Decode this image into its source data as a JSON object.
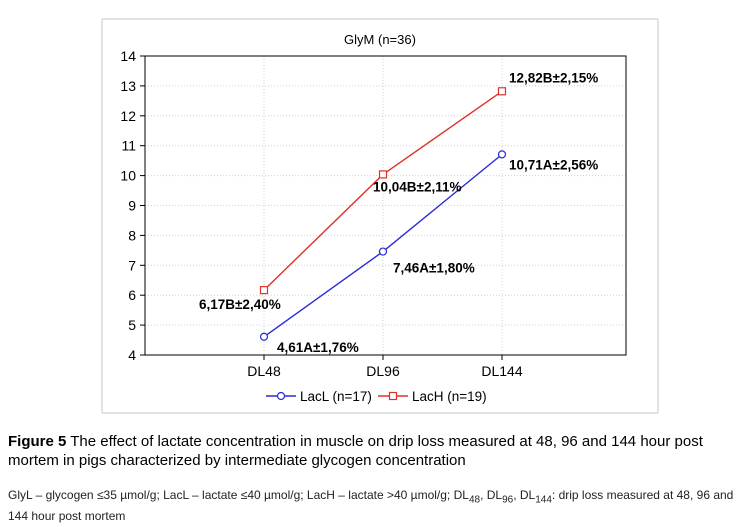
{
  "chart_data": {
    "type": "line",
    "title": "GlyM (n=36)",
    "categories": [
      "DL48",
      "DL96",
      "DL144"
    ],
    "ylim": [
      4,
      14
    ],
    "yticks": [
      4,
      5,
      6,
      7,
      8,
      9,
      10,
      11,
      12,
      13,
      14
    ],
    "grid": true,
    "legend_position": "bottom",
    "series": [
      {
        "name": "LacL (n=17)",
        "marker": "circle",
        "color": "#2a2ad8",
        "values": [
          4.61,
          7.46,
          10.71
        ],
        "labels": [
          "4,61A±1,76%",
          "7,46A±1,80%",
          "10,71A±2,56%"
        ]
      },
      {
        "name": "LacH (n=19)",
        "marker": "square",
        "color": "#e0302a",
        "values": [
          6.17,
          10.04,
          12.82
        ],
        "labels": [
          "6,17B±2,40%",
          "10,04B±2,11%",
          "12,82B±2,15%"
        ]
      }
    ]
  },
  "caption": {
    "label": "Figure 5",
    "text": " The effect of lactate concentration in muscle on drip loss measured at 48, 96 and 144 hour post mortem in pigs characterized by intermediate glycogen concentration"
  },
  "note": {
    "part1": "GlyL – glycogen ≤35 µmol/g; LacL – lactate ≤40 µmol/g; LacH – lactate >40 µmol/g; DL",
    "sub48": "48",
    "sep1": ", DL",
    "sub96": "96",
    "sep2": ", DL",
    "sub144": "144",
    "part2": ": drip loss measured at 48, 96 and 144 hour post mortem"
  }
}
